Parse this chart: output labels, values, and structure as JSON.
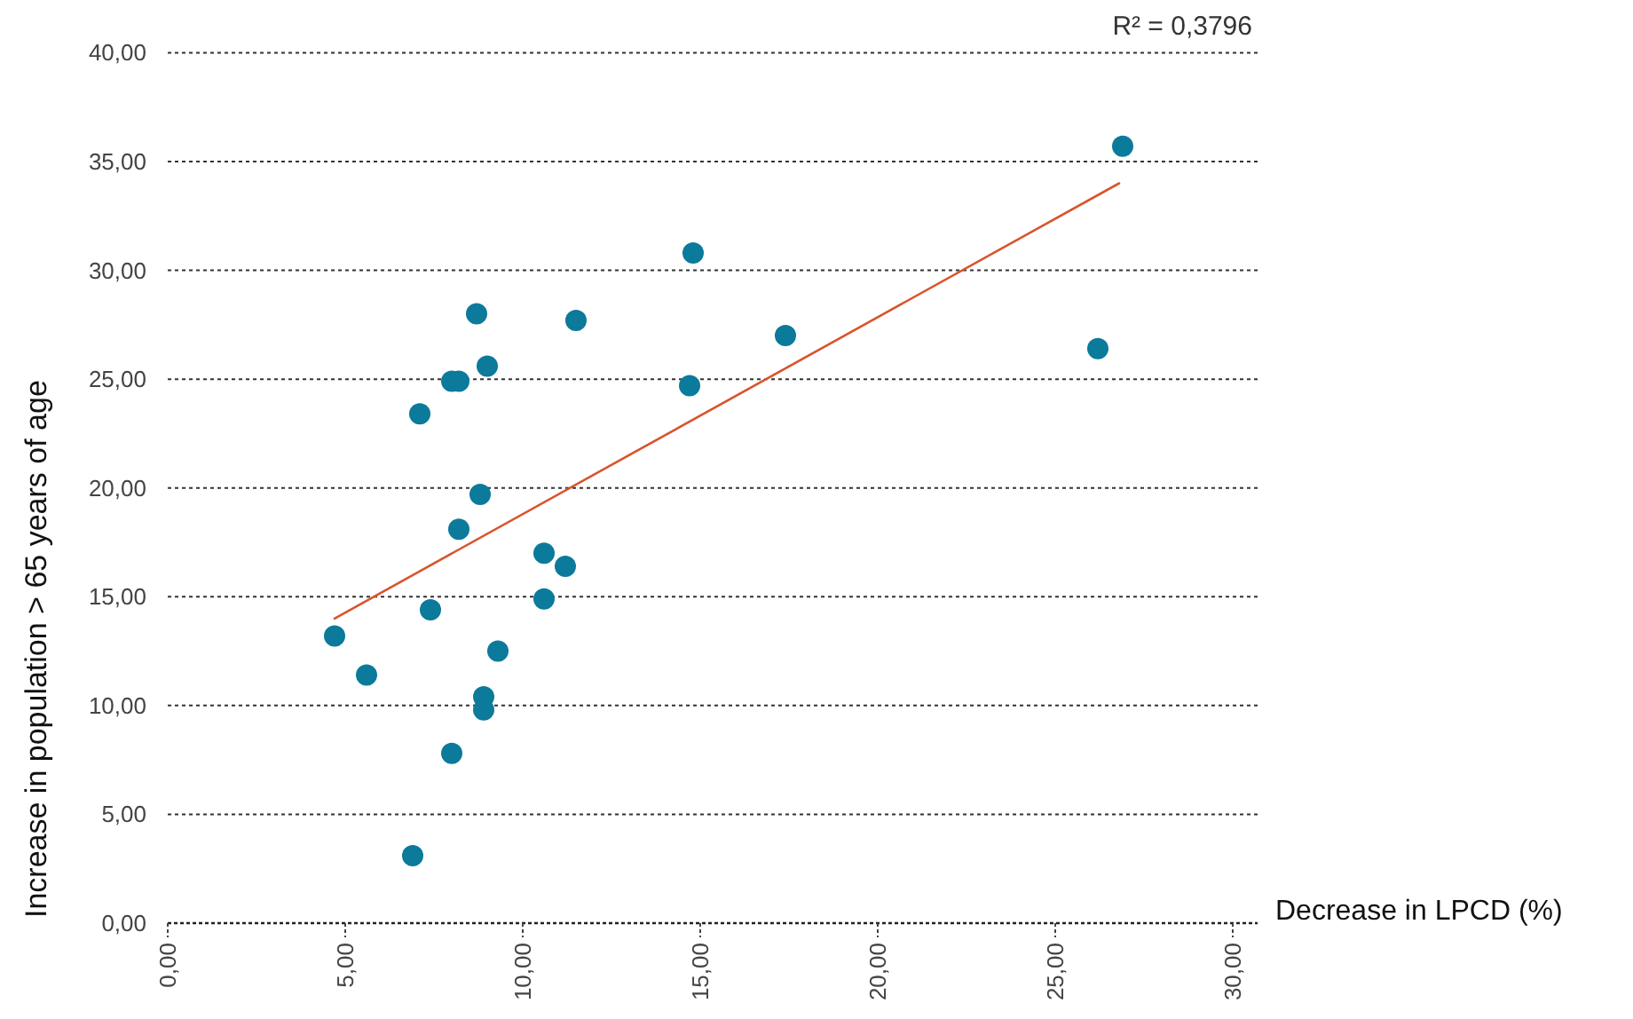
{
  "chart_data": {
    "type": "scatter",
    "xlabel": "Decrease in LPCD (%)",
    "ylabel": "Increase in population > 65 years of age",
    "annotations": [
      "R² = 0,3796"
    ],
    "xlim": [
      0,
      30.7
    ],
    "ylim": [
      0,
      40
    ],
    "xticks": [
      {
        "value": 0,
        "label": "0,00"
      },
      {
        "value": 5,
        "label": "5,00"
      },
      {
        "value": 10,
        "label": "10,00"
      },
      {
        "value": 15,
        "label": "15,00"
      },
      {
        "value": 20,
        "label": "20,00"
      },
      {
        "value": 25,
        "label": "25,00"
      },
      {
        "value": 30,
        "label": "30,00"
      }
    ],
    "yticks": [
      {
        "value": 0,
        "label": "0,00"
      },
      {
        "value": 5,
        "label": "5,00"
      },
      {
        "value": 10,
        "label": "10,00"
      },
      {
        "value": 15,
        "label": "15,00"
      },
      {
        "value": 20,
        "label": "20,00"
      },
      {
        "value": 25,
        "label": "25,00"
      },
      {
        "value": 30,
        "label": "30,00"
      },
      {
        "value": 35,
        "label": "35,00"
      },
      {
        "value": 40,
        "label": "40,00"
      }
    ],
    "grid": "y",
    "series": [
      {
        "color": "#0b7a9b",
        "marker": "circle",
        "x": [
          14.8,
          8.7,
          11.5,
          9.0,
          8.0,
          8.2,
          14.7,
          7.1,
          8.8,
          26.9,
          17.4,
          26.2,
          8.2,
          10.6,
          11.2,
          10.6,
          7.4,
          4.7,
          9.3,
          5.6,
          8.9,
          8.9,
          8.0,
          6.9
        ],
        "values": [
          30.8,
          28.0,
          27.7,
          25.6,
          24.9,
          24.9,
          24.7,
          23.4,
          19.7,
          35.7,
          27.0,
          26.4,
          18.1,
          17.0,
          16.4,
          14.9,
          14.4,
          13.2,
          12.5,
          11.4,
          10.4,
          9.8,
          7.8,
          3.1
        ]
      },
      {
        "type": "line",
        "color": "#d9542c",
        "x": [
          4.7,
          26.8
        ],
        "values": [
          14.0,
          34.0
        ]
      }
    ]
  }
}
